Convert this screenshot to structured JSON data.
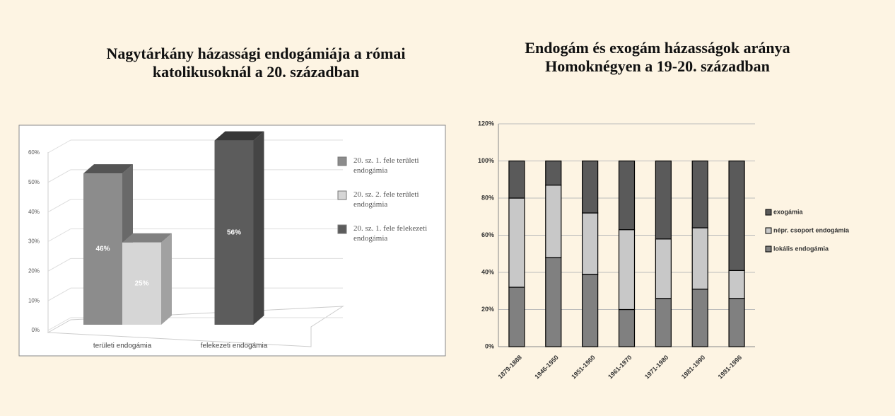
{
  "chart_data": [
    {
      "type": "bar3d",
      "title": "Nagytárkány házassági endogámiája a római katolikusoknál a 20. században",
      "categories": [
        "területi endogámia",
        "felekezeti endogámia"
      ],
      "series": [
        {
          "name": "20. sz. 1. fele területi endogámia",
          "color": "#8c8c8c",
          "values": [
            46,
            null
          ],
          "value_labels": [
            "46%",
            null
          ]
        },
        {
          "name": "20. sz. 2. fele területi endogámia",
          "color": "#d6d6d6",
          "values": [
            25,
            null
          ],
          "value_labels": [
            "25%",
            null
          ]
        },
        {
          "name": "20. sz. 1. fele felekezeti endogámia",
          "color": "#5c5c5c",
          "values": [
            null,
            56
          ],
          "value_labels": [
            null,
            "56%"
          ]
        }
      ],
      "ylim": [
        0,
        60
      ],
      "yticks": [
        {
          "value": 0,
          "label": "0%"
        },
        {
          "value": 10,
          "label": "10%"
        },
        {
          "value": 20,
          "label": "20%"
        },
        {
          "value": 30,
          "label": "30%"
        },
        {
          "value": 40,
          "label": "40%"
        },
        {
          "value": 50,
          "label": "50%"
        },
        {
          "value": 60,
          "label": "60%"
        }
      ],
      "grid": true,
      "legend": "right"
    },
    {
      "type": "stacked_bar",
      "title": "Endogám és exogám házasságok aránya Homoknégyen a 19-20. században",
      "categories": [
        "1879-1888",
        "1946-1950",
        "1951-1960",
        "1961-1970",
        "1971-1980",
        "1981-1990",
        "1991-1996"
      ],
      "series": [
        {
          "name": "lokális endogámia",
          "color": "#808080",
          "values": [
            32,
            48,
            39,
            20,
            26,
            31,
            26
          ]
        },
        {
          "name": "népr. csoport endogámia",
          "color": "#c8c8c8",
          "values": [
            48,
            39,
            33,
            43,
            32,
            33,
            15
          ]
        },
        {
          "name": "exogámia",
          "color": "#5a5a5a",
          "values": [
            20,
            13,
            28,
            37,
            42,
            36,
            59
          ]
        }
      ],
      "ylim": [
        0,
        120
      ],
      "yticks": [
        {
          "value": 0,
          "label": "0%"
        },
        {
          "value": 20,
          "label": "20%"
        },
        {
          "value": 40,
          "label": "40%"
        },
        {
          "value": 60,
          "label": "60%"
        },
        {
          "value": 80,
          "label": "80%"
        },
        {
          "value": 100,
          "label": "100%"
        },
        {
          "value": 120,
          "label": "120%"
        }
      ],
      "grid": true,
      "legend": "right"
    }
  ]
}
